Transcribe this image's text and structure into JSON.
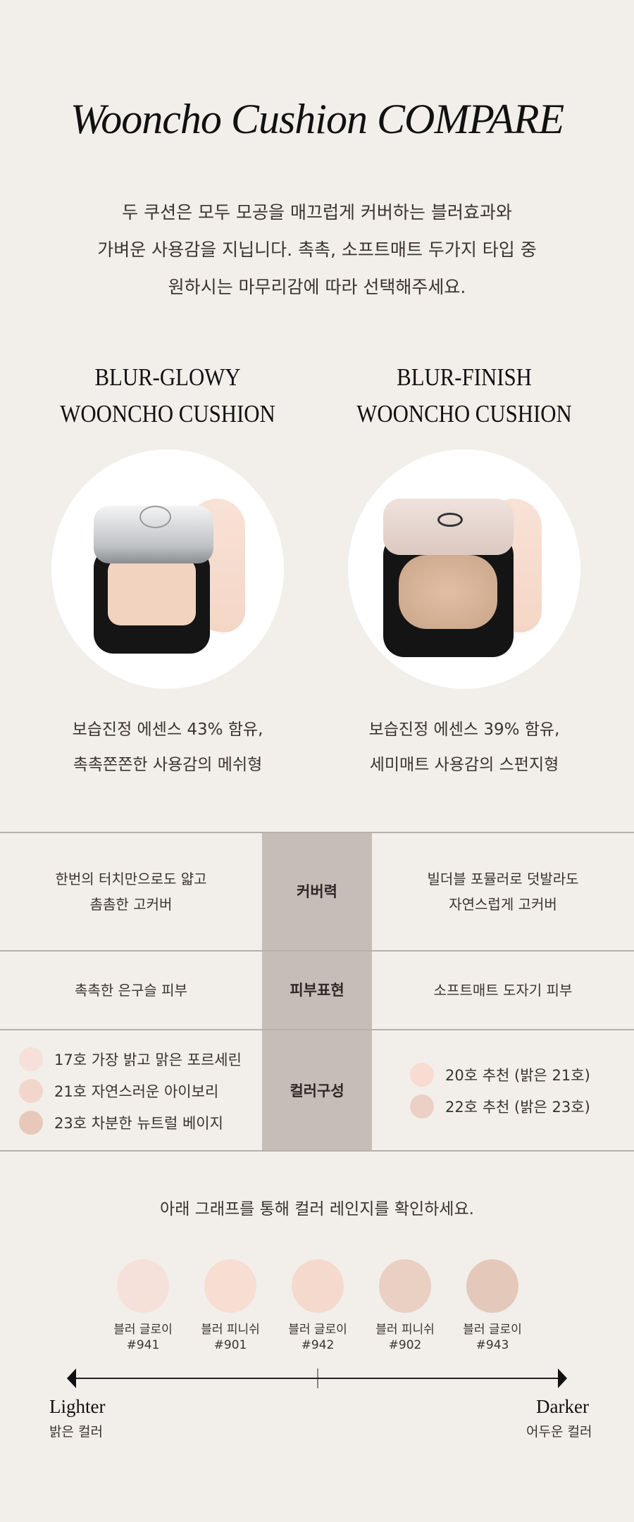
{
  "title": "Wooncho Cushion COMPARE",
  "intro": [
    "두 쿠션은 모두 모공을 매끄럽게 커버하는 블러효과와",
    "가벼운 사용감을 지닙니다. 촉촉, 소프트매트 두가지 타입 중",
    "원하시는 마무리감에 따라 선택해주세요."
  ],
  "products": [
    {
      "name_line1": "BLUR-GLOWY",
      "name_line2": "WOONCHO CUSHION",
      "desc_line1": "보습진정 에센스 43% 함유,",
      "desc_line2": "촉촉쫀쫀한 사용감의 메쉬형"
    },
    {
      "name_line1": "BLUR-FINISH",
      "name_line2": "WOONCHO CUSHION",
      "desc_line1": "보습진정 에센스 39% 함유,",
      "desc_line2": "세미매트 사용감의 스펀지형"
    }
  ],
  "compare": {
    "rows": [
      {
        "label": "커버력",
        "left": [
          "한번의 터치만으로도 얇고",
          "촘촘한 고커버"
        ],
        "right": [
          "빌더블 포뮬러로 덧발라도",
          "자연스럽게 고커버"
        ]
      },
      {
        "label": "피부표현",
        "left": [
          "촉촉한 은구슬 피부"
        ],
        "right": [
          "소프트매트 도자기 피부"
        ]
      },
      {
        "label": "컬러구성",
        "left": [
          {
            "text": "17호 가장 밝고 맑은 포르세린",
            "color": "#f6e0d9"
          },
          {
            "text": "21호 자연스러운 아이보리",
            "color": "#f3d6cb"
          },
          {
            "text": "23호 차분한 뉴트럴 베이지",
            "color": "#e8c8b8"
          }
        ],
        "right": [
          {
            "text": "20호 추천 (밝은 21호)",
            "color": "#f8dcd1"
          },
          {
            "text": "22호 추천 (밝은 23호)",
            "color": "#ecd0c5"
          }
        ]
      }
    ]
  },
  "range": {
    "caption": "아래 그래프를 통해 컬러 레인지를 확인하세요.",
    "swatches": [
      {
        "name": "블러 글로이",
        "code": "#941",
        "color": "#f6e1da"
      },
      {
        "name": "블러 피니쉬",
        "code": "#901",
        "color": "#f8ddd2"
      },
      {
        "name": "블러 글로이",
        "code": "#942",
        "color": "#f4d9cc"
      },
      {
        "name": "블러 피니쉬",
        "code": "#902",
        "color": "#eacfc3"
      },
      {
        "name": "블러 글로이",
        "code": "#943",
        "color": "#e4c8b9"
      }
    ],
    "lighter": "Lighter",
    "lighter_kr": "밝은 컬러",
    "darker": "Darker",
    "darker_kr": "어두운 컬러"
  }
}
